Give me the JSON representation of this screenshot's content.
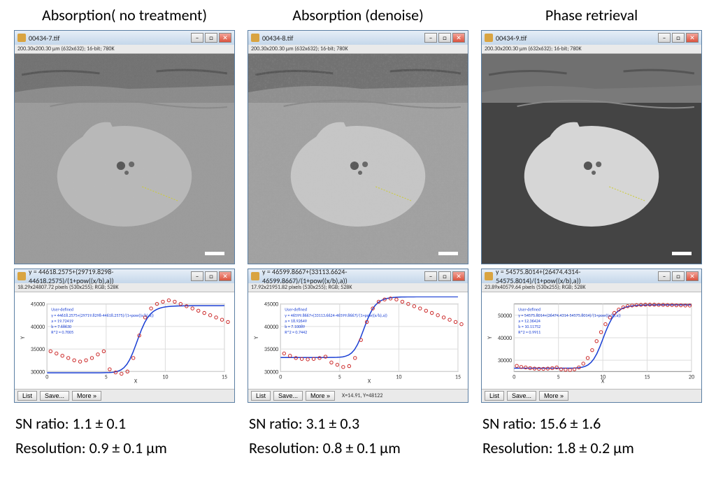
{
  "columns": [
    {
      "title": "Absorption( no treatment)",
      "imgWin": {
        "fname": "00434-7.tif",
        "sub": "200.30x200.30 µm (632x632); 16-bit; 780K"
      },
      "plotWin": {
        "eq": "y = 44618.2575+(29719.8298-44618.2575)/(1+pow((x/b),a))",
        "sub": "18.29x24807.72 pixels (530x255); RGB; 528K"
      },
      "fit": {
        "l1": "User-defined",
        "l2": "y = 44618.2575+(29719.8298-44618.2575)/(1+pow((x/b),a))",
        "l3": "a = 19.72419",
        "l4": "b = 7.68630",
        "l5": "R^2 = 0.7005"
      },
      "plot": {
        "ymin": 30000,
        "ymax": 45000,
        "xmin": 0,
        "xmax": 15,
        "yticks": [
          30000,
          35000,
          40000,
          45000
        ],
        "xticks": [
          0,
          5,
          10,
          15
        ],
        "points": [
          [
            0.3,
            34500
          ],
          [
            0.8,
            34000
          ],
          [
            1.3,
            33500
          ],
          [
            1.8,
            33000
          ],
          [
            2.3,
            32500
          ],
          [
            2.8,
            32200
          ],
          [
            3.3,
            32500
          ],
          [
            3.8,
            33000
          ],
          [
            4.3,
            33800
          ],
          [
            4.8,
            34500
          ],
          [
            5.3,
            30500
          ],
          [
            5.8,
            29800
          ],
          [
            6.3,
            29500
          ],
          [
            6.8,
            30000
          ],
          [
            7.3,
            33000
          ],
          [
            7.8,
            38000
          ],
          [
            8.3,
            42000
          ],
          [
            8.8,
            44000
          ],
          [
            9.3,
            45000
          ],
          [
            9.8,
            45500
          ],
          [
            10.3,
            45800
          ],
          [
            10.8,
            45500
          ],
          [
            11.3,
            45000
          ],
          [
            11.8,
            44500
          ],
          [
            12.3,
            44000
          ],
          [
            12.8,
            43500
          ],
          [
            13.3,
            43000
          ],
          [
            13.8,
            42500
          ],
          [
            14.3,
            42000
          ],
          [
            14.8,
            41500
          ],
          [
            15.3,
            41000
          ],
          [
            15.8,
            40500
          ]
        ],
        "fitB": 7.68,
        "fitLo": 29719,
        "fitHi": 44618
      },
      "btns": {
        "list": "List",
        "save": "Save...",
        "more": "More »",
        "status": ""
      },
      "sn": "SN ratio: 1.1 ± 0.1",
      "res": "Resolution: 0.9 ± 0.1 µm",
      "bg_mode": "noisy"
    },
    {
      "title": "Absorption (denoise)",
      "imgWin": {
        "fname": "00434-8.tif",
        "sub": "200.30x200.30 µm (632x632); 16-bit; 780K"
      },
      "plotWin": {
        "eq": "y = 46599.8667+(33113.6624-46599.8667)/(1+pow((x/b),a))",
        "sub": "17.92x21951.82 pixels (530x255); RGB; 528K"
      },
      "fit": {
        "l1": "User-defined",
        "l2": "y = 46599.8667+(33113.6624-46599.8667)/(1+pow((x/b),a))",
        "l3": "a = 18.92649",
        "l4": "b = 7.10089",
        "l5": "R^2 = 0.7442"
      },
      "plot": {
        "ymin": 30000,
        "ymax": 45000,
        "xmin": 0,
        "xmax": 15,
        "yticks": [
          30000,
          35000,
          40000,
          45000
        ],
        "xticks": [
          0,
          5,
          10,
          15
        ],
        "points": [
          [
            0.3,
            34000
          ],
          [
            0.8,
            33500
          ],
          [
            1.3,
            33000
          ],
          [
            1.8,
            32800
          ],
          [
            2.3,
            32700
          ],
          [
            2.8,
            32800
          ],
          [
            3.3,
            33000
          ],
          [
            3.8,
            33300
          ],
          [
            4.3,
            32000
          ],
          [
            4.8,
            31500
          ],
          [
            5.3,
            31000
          ],
          [
            5.8,
            31200
          ],
          [
            6.3,
            33000
          ],
          [
            6.8,
            37000
          ],
          [
            7.3,
            41000
          ],
          [
            7.8,
            44000
          ],
          [
            8.3,
            45500
          ],
          [
            8.8,
            46000
          ],
          [
            9.3,
            46200
          ],
          [
            9.8,
            46000
          ],
          [
            10.3,
            45500
          ],
          [
            10.8,
            45000
          ],
          [
            11.3,
            44500
          ],
          [
            11.8,
            44000
          ],
          [
            12.3,
            43500
          ],
          [
            12.8,
            43000
          ],
          [
            13.3,
            42500
          ],
          [
            13.8,
            42000
          ],
          [
            14.3,
            41500
          ],
          [
            14.8,
            41000
          ],
          [
            15.3,
            40500
          ]
        ],
        "fitB": 7.1,
        "fitLo": 33113,
        "fitHi": 46599
      },
      "btns": {
        "list": "List",
        "save": "Save...",
        "more": "More »",
        "status": "X=14.91, Y=48122"
      },
      "sn": "SN ratio: 3.1 ± 0.3",
      "res": "Resolution: 0.8 ± 0.1 µm",
      "bg_mode": "smooth"
    },
    {
      "title": "Phase retrieval",
      "imgWin": {
        "fname": "00434-9.tif",
        "sub": "200.30x200.30 µm (632x632); 16-bit; 780K"
      },
      "plotWin": {
        "eq": "y = 54575.8014+(26474.4314-54575.8014)/(1+pow((x/b),a))",
        "sub": "23.89x40579.64 pixels (530x255); RGB; 528K"
      },
      "fit": {
        "l1": "User-defined",
        "l2": "y = 54575.8014+(26474.4314-54575.8014)/(1+pow((x/b),a))",
        "l3": "a = 12.36424",
        "l4": "b = 10.11752",
        "l5": "R^2 = 0.9911"
      },
      "plot": {
        "ymin": 25000,
        "ymax": 55000,
        "xmin": 0,
        "xmax": 20,
        "yticks": [
          30000,
          40000,
          50000
        ],
        "xticks": [
          0,
          5,
          10,
          15,
          20
        ],
        "points": [
          [
            0.3,
            27500
          ],
          [
            0.8,
            27000
          ],
          [
            1.3,
            26800
          ],
          [
            1.8,
            26500
          ],
          [
            2.3,
            26300
          ],
          [
            2.8,
            26200
          ],
          [
            3.3,
            26200
          ],
          [
            3.8,
            26300
          ],
          [
            4.3,
            26500
          ],
          [
            4.8,
            26800
          ],
          [
            5.3,
            26000
          ],
          [
            5.8,
            25800
          ],
          [
            6.3,
            25700
          ],
          [
            6.8,
            26000
          ],
          [
            7.3,
            26800
          ],
          [
            7.8,
            28500
          ],
          [
            8.3,
            31000
          ],
          [
            8.8,
            34500
          ],
          [
            9.3,
            38500
          ],
          [
            9.8,
            42500
          ],
          [
            10.3,
            46000
          ],
          [
            10.8,
            49000
          ],
          [
            11.3,
            51000
          ],
          [
            11.8,
            52500
          ],
          [
            12.3,
            53500
          ],
          [
            12.8,
            54000
          ],
          [
            13.3,
            54300
          ],
          [
            13.8,
            54500
          ],
          [
            14.3,
            54600
          ],
          [
            14.8,
            54700
          ],
          [
            15.3,
            54700
          ],
          [
            15.8,
            54700
          ],
          [
            16.3,
            54600
          ],
          [
            16.8,
            54600
          ],
          [
            17.3,
            54500
          ],
          [
            17.8,
            54500
          ],
          [
            18.3,
            54400
          ],
          [
            18.8,
            54400
          ],
          [
            19.3,
            54300
          ],
          [
            19.8,
            54300
          ]
        ],
        "fitB": 10.11,
        "fitLo": 26474,
        "fitHi": 54575
      },
      "btns": {
        "list": "List",
        "save": "Save...",
        "more": "More »",
        "status": ""
      },
      "sn": "SN ratio: 15.6 ± 1.6",
      "res": "Resolution: 1.8 ± 0.2 µm",
      "bg_mode": "dark"
    }
  ]
}
